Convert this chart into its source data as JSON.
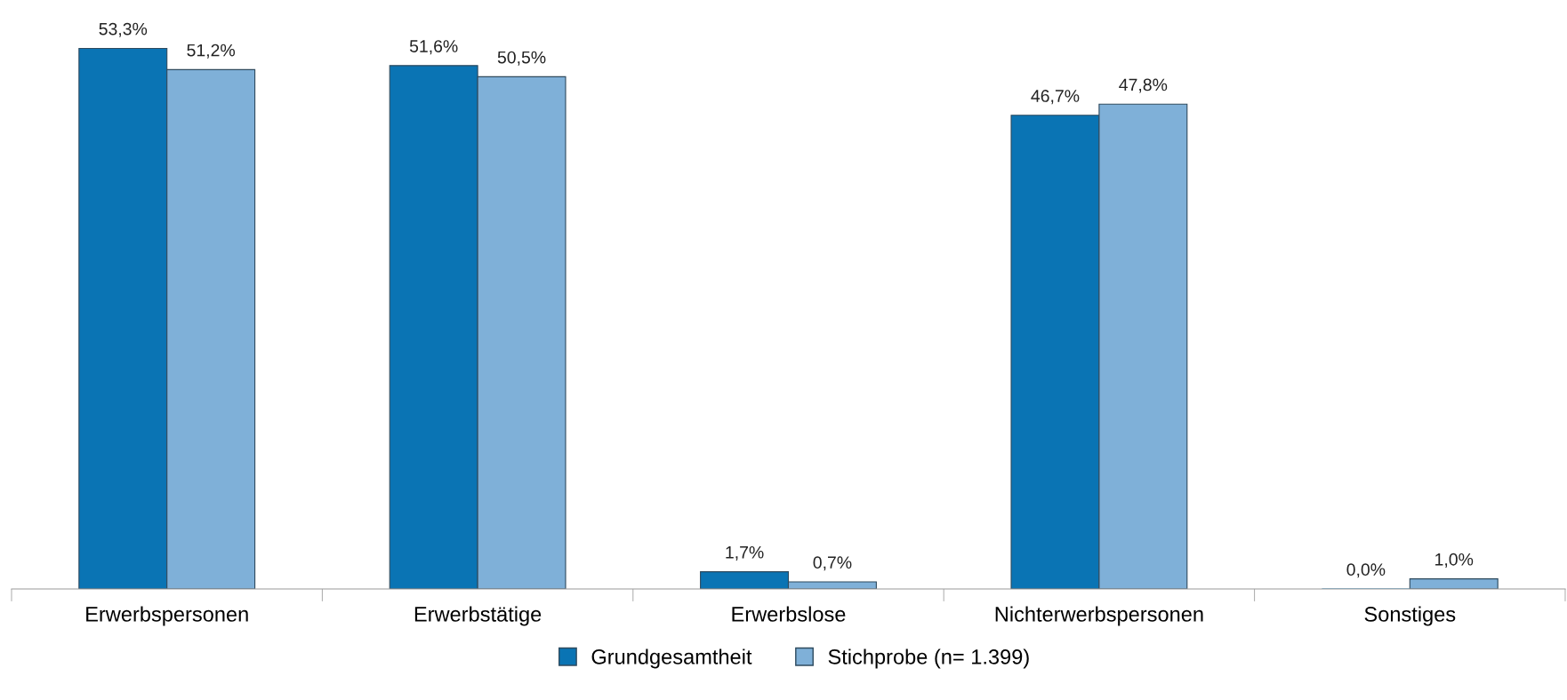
{
  "chart_data": {
    "type": "bar",
    "categories": [
      "Erwerbspersonen",
      "Erwerbstätige",
      "Erwerbslose",
      "Nichterwerbspersonen",
      "Sonstiges"
    ],
    "series": [
      {
        "name": "Grundgesamtheit",
        "color": "#0a74b4",
        "values": [
          53.3,
          51.6,
          1.7,
          46.7,
          0.0
        ],
        "value_labels": [
          "53,3%",
          "51,6%",
          "1,7%",
          "46,7%",
          "0,0%"
        ]
      },
      {
        "name": "Stichprobe (n= 1.399)",
        "color": "#7fb0d8",
        "values": [
          51.2,
          50.5,
          0.7,
          47.8,
          1.0
        ],
        "value_labels": [
          "51,2%",
          "50,5%",
          "0,7%",
          "47,8%",
          "1,0%"
        ]
      }
    ],
    "grid": false,
    "legend": "bottom"
  }
}
